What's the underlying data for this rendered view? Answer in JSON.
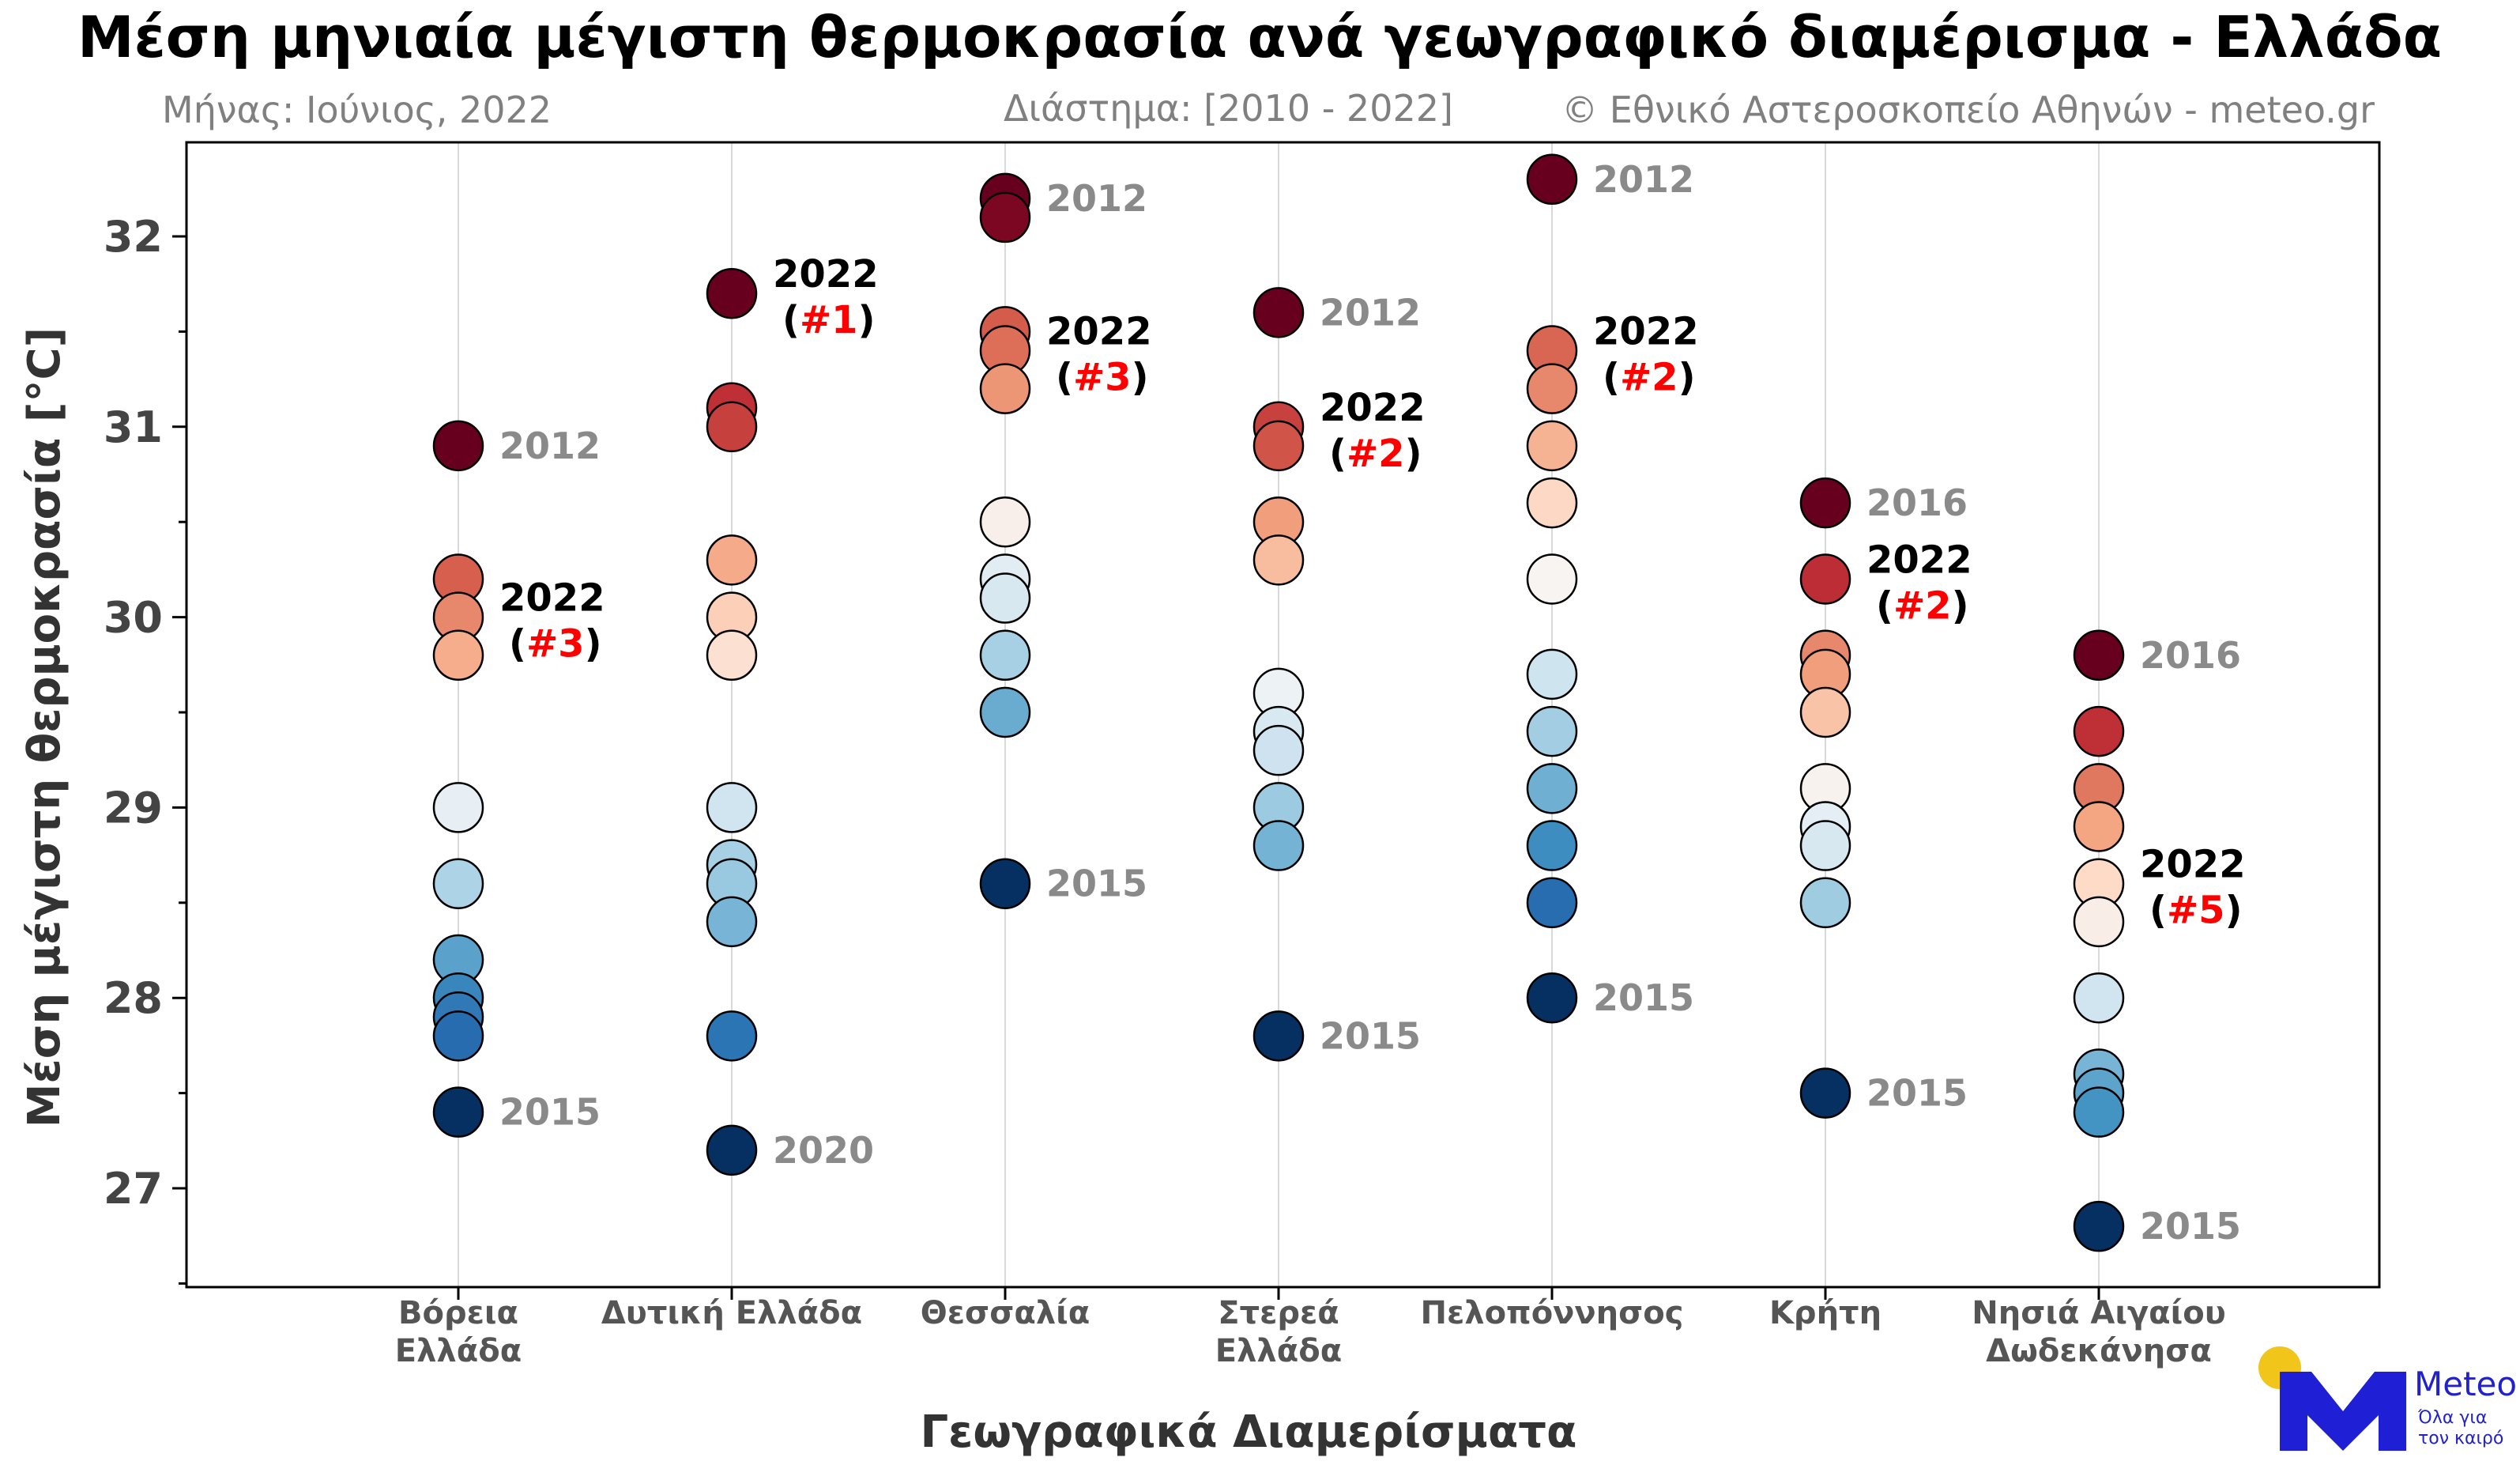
{
  "header": {
    "title": "Μέση μηνιαία μέγιστη θερμοκρασία ανά γεωγραφικό διαμέρισμα - Ελλάδα",
    "month": "Μήνας: Ιούνιος, 2022",
    "period": "Διάστημα: [2010 - 2022]",
    "copyright": "© Εθνικό Αστεροσκοπείο Αθηνών - meteo.gr"
  },
  "logo": {
    "brand": "Meteo",
    "tagline_1": "Όλα για",
    "tagline_2": "τον καιρό",
    "sun_color": "#f2c51b",
    "mark_color": "#1f1fd6"
  },
  "chart_data": {
    "type": "scatter",
    "xlabel": "Γεωγραφικά Διαμερίσματα",
    "ylabel": "Μέση μέγιστη θερμοκρασία [°C]",
    "ylim": [
      26.5,
      32.5
    ],
    "yticks": [
      27,
      28,
      29,
      30,
      31,
      32
    ],
    "grid": "vertical",
    "colorscale": [
      "#053061",
      "#2166ac",
      "#4393c3",
      "#92c5de",
      "#d1e5f0",
      "#f7f7f7",
      "#fddbc7",
      "#f4a582",
      "#d6604d",
      "#b2182b",
      "#67001f"
    ],
    "regions": [
      {
        "name": [
          "Βόρεια",
          "Ελλάδα"
        ],
        "values": [
          30.9,
          30.2,
          30.0,
          29.8,
          29.0,
          28.6,
          28.2,
          28.0,
          27.9,
          27.8,
          27.4
        ],
        "max_label": "2012",
        "max_value": 30.9,
        "min_label": "2015",
        "min_value": 27.4,
        "current": {
          "year": "2022",
          "rank": "#3",
          "value": 30.0
        }
      },
      {
        "name": [
          "Δυτική Ελλάδα"
        ],
        "values": [
          31.7,
          31.1,
          31.0,
          30.3,
          30.0,
          29.8,
          29.0,
          28.7,
          28.6,
          28.4,
          27.8,
          27.2
        ],
        "max_label": "2022",
        "max_value": 31.7,
        "min_label": "2020",
        "min_value": 27.2,
        "current": {
          "year": "2022",
          "rank": "#1",
          "value": 31.7
        }
      },
      {
        "name": [
          "Θεσσαλία"
        ],
        "values": [
          32.2,
          32.1,
          31.5,
          31.4,
          31.2,
          30.5,
          30.2,
          30.1,
          29.8,
          29.5,
          28.6
        ],
        "max_label": "2012",
        "max_value": 32.2,
        "min_label": "2015",
        "min_value": 28.6,
        "current": {
          "year": "2022",
          "rank": "#3",
          "value": 31.4
        }
      },
      {
        "name": [
          "Στερεά",
          "Ελλάδα"
        ],
        "values": [
          31.6,
          31.0,
          30.9,
          30.5,
          30.3,
          29.6,
          29.4,
          29.3,
          29.0,
          28.8,
          27.8
        ],
        "max_label": "2012",
        "max_value": 31.6,
        "min_label": "2015",
        "min_value": 27.8,
        "current": {
          "year": "2022",
          "rank": "#2",
          "value": 31.0
        }
      },
      {
        "name": [
          "Πελοπόννησος"
        ],
        "values": [
          32.3,
          31.4,
          31.2,
          30.9,
          30.6,
          30.2,
          29.7,
          29.4,
          29.1,
          28.8,
          28.5,
          28.0
        ],
        "max_label": "2012",
        "max_value": 32.3,
        "min_label": "2015",
        "min_value": 28.0,
        "current": {
          "year": "2022",
          "rank": "#2",
          "value": 31.4
        }
      },
      {
        "name": [
          "Κρήτη"
        ],
        "values": [
          30.6,
          30.2,
          29.8,
          29.7,
          29.5,
          29.1,
          28.9,
          28.8,
          28.5,
          27.5
        ],
        "max_label": "2016",
        "max_value": 30.6,
        "min_label": "2015",
        "min_value": 27.5,
        "current": {
          "year": "2022",
          "rank": "#2",
          "value": 30.2
        }
      },
      {
        "name": [
          "Νησιά Αιγαίου",
          "Δωδεκάνησα"
        ],
        "values": [
          29.8,
          29.4,
          29.1,
          28.9,
          28.6,
          28.4,
          28.0,
          27.6,
          27.5,
          27.4,
          26.8
        ],
        "max_label": "2016",
        "max_value": 29.8,
        "min_label": "2015",
        "min_value": 26.8,
        "current": {
          "year": "2022",
          "rank": "#5",
          "value": 28.6
        }
      }
    ]
  }
}
